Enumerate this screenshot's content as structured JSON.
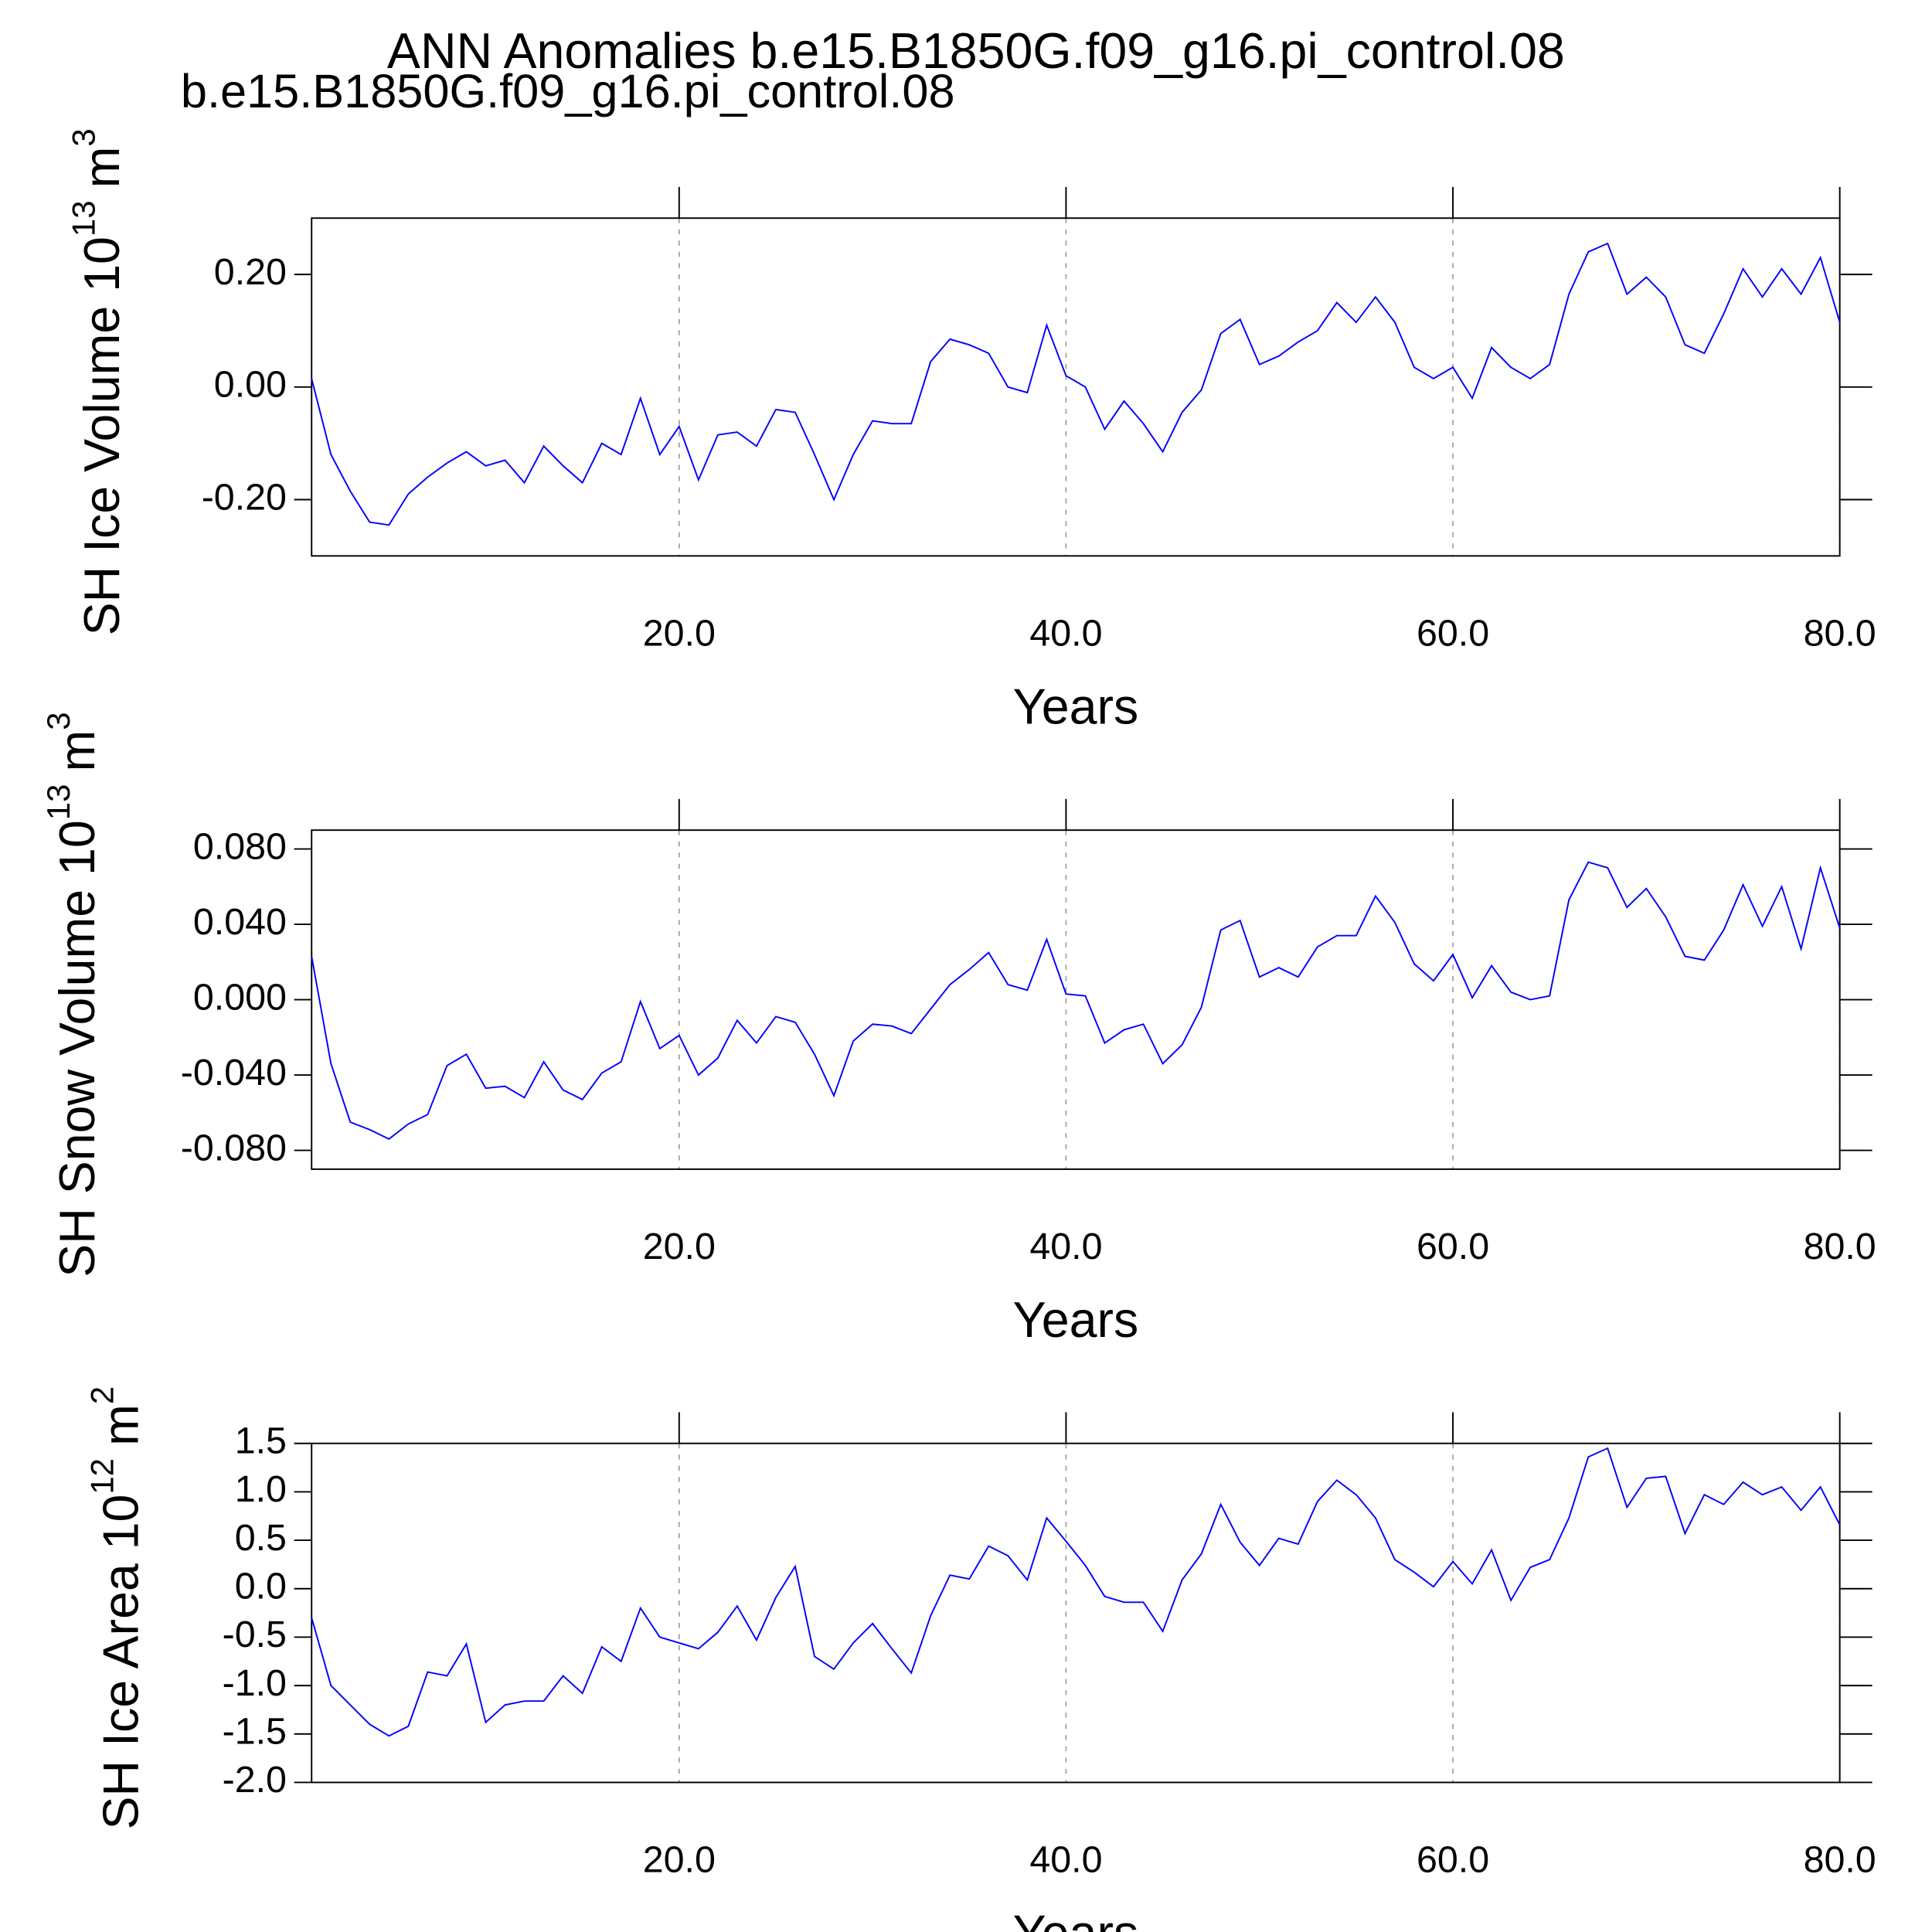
{
  "title": "ANN Anomalies b.e15.B1850G.f09_g16.pi_control.08",
  "subtitle": "b.e15.B1850G.f09_g16.pi_control.08",
  "subtitle_color": "#0000ff",
  "chart_data": [
    {
      "type": "line",
      "ylabel": "SH Ice Volume 10",
      "ylabel_exp": "13",
      "ylabel_unit": "m",
      "ylabel_unit_exp": "3",
      "xlabel": "Years",
      "color": "#0000ff",
      "xgrid": true,
      "xlim": [
        1,
        80
      ],
      "xticks": [
        {
          "value": 20,
          "label": "20.0"
        },
        {
          "value": 40,
          "label": "40.0"
        },
        {
          "value": 60,
          "label": "60.0"
        },
        {
          "value": 80,
          "label": "80.0"
        }
      ],
      "ylim": [
        -0.3,
        0.3
      ],
      "yticks": [
        {
          "value": -0.2,
          "label": "-0.20"
        },
        {
          "value": 0,
          "label": "0.00"
        },
        {
          "value": 0.2,
          "label": "0.20"
        }
      ],
      "x": [
        1,
        2,
        3,
        4,
        5,
        6,
        7,
        8,
        9,
        10,
        11,
        12,
        13,
        14,
        15,
        16,
        17,
        18,
        19,
        20,
        21,
        22,
        23,
        24,
        25,
        26,
        27,
        28,
        29,
        30,
        31,
        32,
        33,
        34,
        35,
        36,
        37,
        38,
        39,
        40,
        41,
        42,
        43,
        44,
        45,
        46,
        47,
        48,
        49,
        50,
        51,
        52,
        53,
        54,
        55,
        56,
        57,
        58,
        59,
        60,
        61,
        62,
        63,
        64,
        65,
        66,
        67,
        68,
        69,
        70,
        71,
        72,
        73,
        74,
        75,
        76,
        77,
        78,
        79,
        80
      ],
      "values": [
        0.015,
        -0.12,
        -0.185,
        -0.24,
        -0.245,
        -0.19,
        -0.16,
        -0.135,
        -0.115,
        -0.14,
        -0.13,
        -0.17,
        -0.105,
        -0.14,
        -0.17,
        -0.1,
        -0.12,
        -0.02,
        -0.12,
        -0.07,
        -0.165,
        -0.085,
        -0.08,
        -0.105,
        -0.04,
        -0.045,
        -0.12,
        -0.2,
        -0.12,
        -0.06,
        -0.065,
        -0.065,
        0.045,
        0.085,
        0.075,
        0.06,
        0.0,
        -0.01,
        0.11,
        0.02,
        0.0,
        -0.075,
        -0.025,
        -0.065,
        -0.115,
        -0.045,
        -0.005,
        0.095,
        0.12,
        0.04,
        0.055,
        0.08,
        0.1,
        0.15,
        0.115,
        0.16,
        0.115,
        0.035,
        0.015,
        0.035,
        -0.02,
        0.07,
        0.035,
        0.015,
        0.04,
        0.165,
        0.24,
        0.255,
        0.165,
        0.195,
        0.16,
        0.075,
        0.06,
        0.13,
        0.21,
        0.16,
        0.21,
        0.165,
        0.23,
        0.115
      ]
    },
    {
      "type": "line",
      "ylabel": "SH Snow Volume 10",
      "ylabel_exp": "13",
      "ylabel_unit": "m",
      "ylabel_unit_exp": "3",
      "xlabel": "Years",
      "color": "#0000ff",
      "xgrid": true,
      "xlim": [
        1,
        80
      ],
      "xticks": [
        {
          "value": 20,
          "label": "20.0"
        },
        {
          "value": 40,
          "label": "40.0"
        },
        {
          "value": 60,
          "label": "60.0"
        },
        {
          "value": 80,
          "label": "80.0"
        }
      ],
      "ylim": [
        -0.09,
        0.09
      ],
      "yticks": [
        {
          "value": -0.08,
          "label": "-0.080"
        },
        {
          "value": -0.04,
          "label": "-0.040"
        },
        {
          "value": 0,
          "label": "0.000"
        },
        {
          "value": 0.04,
          "label": "0.040"
        },
        {
          "value": 0.08,
          "label": "0.080"
        }
      ],
      "x": [
        1,
        2,
        3,
        4,
        5,
        6,
        7,
        8,
        9,
        10,
        11,
        12,
        13,
        14,
        15,
        16,
        17,
        18,
        19,
        20,
        21,
        22,
        23,
        24,
        25,
        26,
        27,
        28,
        29,
        30,
        31,
        32,
        33,
        34,
        35,
        36,
        37,
        38,
        39,
        40,
        41,
        42,
        43,
        44,
        45,
        46,
        47,
        48,
        49,
        50,
        51,
        52,
        53,
        54,
        55,
        56,
        57,
        58,
        59,
        60,
        61,
        62,
        63,
        64,
        65,
        66,
        67,
        68,
        69,
        70,
        71,
        72,
        73,
        74,
        75,
        76,
        77,
        78,
        79,
        80
      ],
      "values": [
        0.023,
        -0.034,
        -0.065,
        -0.069,
        -0.074,
        -0.066,
        -0.061,
        -0.035,
        -0.029,
        -0.047,
        -0.046,
        -0.052,
        -0.033,
        -0.048,
        -0.053,
        -0.039,
        -0.033,
        -0.001,
        -0.026,
        -0.019,
        -0.04,
        -0.031,
        -0.011,
        -0.023,
        -0.009,
        -0.012,
        -0.029,
        -0.051,
        -0.022,
        -0.013,
        -0.014,
        -0.018,
        -0.005,
        0.008,
        0.016,
        0.025,
        0.008,
        0.005,
        0.032,
        0.003,
        0.002,
        -0.023,
        -0.016,
        -0.013,
        -0.034,
        -0.024,
        -0.004,
        0.037,
        0.042,
        0.012,
        0.017,
        0.012,
        0.028,
        0.034,
        0.034,
        0.055,
        0.041,
        0.019,
        0.01,
        0.024,
        0.001,
        0.018,
        0.004,
        0.0,
        0.002,
        0.053,
        0.073,
        0.07,
        0.049,
        0.059,
        0.044,
        0.023,
        0.021,
        0.037,
        0.061,
        0.039,
        0.06,
        0.027,
        0.07,
        0.038
      ]
    },
    {
      "type": "line",
      "ylabel": "SH Ice Area 10",
      "ylabel_exp": "12",
      "ylabel_unit": "m",
      "ylabel_unit_exp": "2",
      "xlabel": "Years",
      "color": "#0000ff",
      "xgrid": true,
      "xlim": [
        1,
        80
      ],
      "xticks": [
        {
          "value": 20,
          "label": "20.0"
        },
        {
          "value": 40,
          "label": "40.0"
        },
        {
          "value": 60,
          "label": "60.0"
        },
        {
          "value": 80,
          "label": "80.0"
        }
      ],
      "ylim": [
        -2,
        1.5
      ],
      "yticks": [
        {
          "value": -2,
          "label": "-2.0"
        },
        -1.5,
        {
          "value": -1,
          "label": "-1.0"
        },
        -0.5,
        {
          "value": 0,
          "label": "0.0"
        },
        0.5,
        {
          "value": 1,
          "label": "1.0"
        },
        1.5
      ],
      "x": [
        1,
        2,
        3,
        4,
        5,
        6,
        7,
        8,
        9,
        10,
        11,
        12,
        13,
        14,
        15,
        16,
        17,
        18,
        19,
        20,
        21,
        22,
        23,
        24,
        25,
        26,
        27,
        28,
        29,
        30,
        31,
        32,
        33,
        34,
        35,
        36,
        37,
        38,
        39,
        40,
        41,
        42,
        43,
        44,
        45,
        46,
        47,
        48,
        49,
        50,
        51,
        52,
        53,
        54,
        55,
        56,
        57,
        58,
        59,
        60,
        61,
        62,
        63,
        64,
        65,
        66,
        67,
        68,
        69,
        70,
        71,
        72,
        73,
        74,
        75,
        76,
        77,
        78,
        79,
        80
      ],
      "values": [
        -0.3,
        -1.0,
        -1.2,
        -1.4,
        -1.52,
        -1.42,
        -0.86,
        -0.9,
        -0.57,
        -1.38,
        -1.2,
        -1.16,
        -1.16,
        -0.9,
        -1.08,
        -0.6,
        -0.75,
        -0.2,
        -0.5,
        -0.56,
        -0.62,
        -0.45,
        -0.18,
        -0.53,
        -0.09,
        0.23,
        -0.7,
        -0.83,
        -0.56,
        -0.36,
        -0.62,
        -0.87,
        -0.28,
        0.14,
        0.1,
        0.44,
        0.34,
        0.09,
        0.73,
        0.49,
        0.24,
        -0.08,
        -0.14,
        -0.14,
        -0.44,
        0.09,
        0.36,
        0.87,
        0.48,
        0.24,
        0.52,
        0.46,
        0.9,
        1.12,
        0.97,
        0.73,
        0.3,
        0.17,
        0.02,
        0.28,
        0.05,
        0.4,
        -0.12,
        0.22,
        0.3,
        0.73,
        1.36,
        1.45,
        0.84,
        1.14,
        1.16,
        0.57,
        0.97,
        0.87,
        1.1,
        0.97,
        1.05,
        0.81,
        1.05,
        0.66
      ]
    }
  ]
}
